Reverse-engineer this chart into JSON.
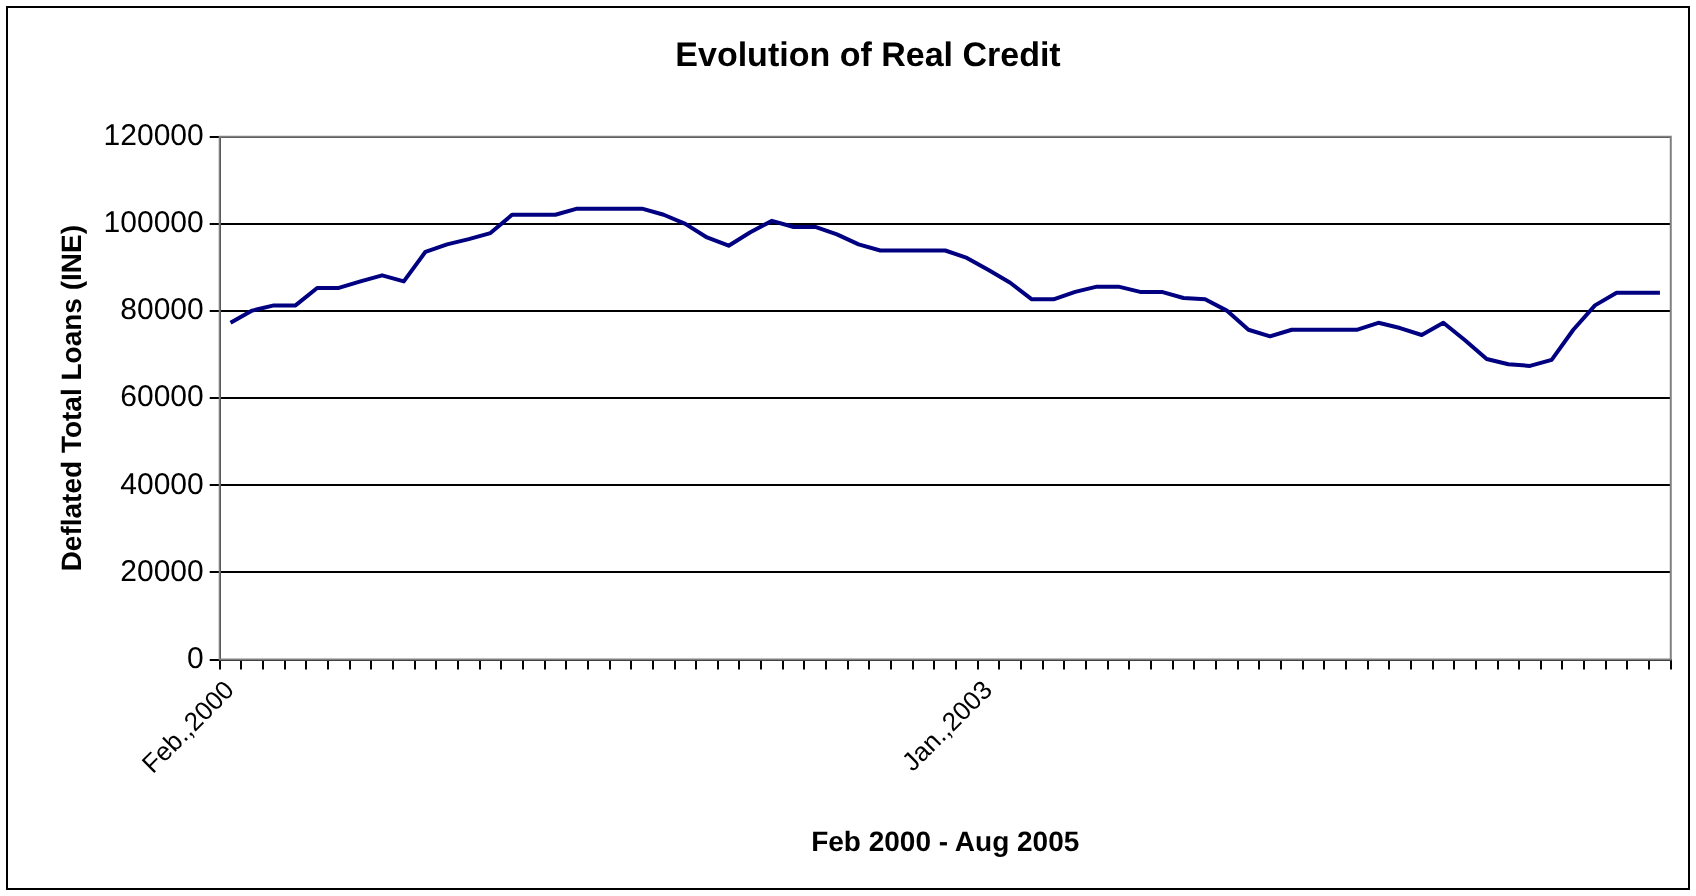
{
  "chart_data": {
    "type": "line",
    "title": "Evolution of Real Credit",
    "xlabel": "Feb 2000 - Aug 2005",
    "ylabel": "Deflated Total Loans (INE)",
    "categories": [
      "Feb.,2000",
      null,
      null,
      null,
      null,
      null,
      null,
      null,
      null,
      null,
      null,
      null,
      null,
      null,
      null,
      null,
      null,
      null,
      null,
      null,
      null,
      null,
      null,
      null,
      null,
      null,
      null,
      null,
      null,
      null,
      null,
      null,
      null,
      null,
      null,
      "Jan.,2003",
      null,
      null,
      null,
      null,
      null,
      null,
      null,
      null,
      null,
      null,
      null,
      null,
      null,
      null,
      null,
      null,
      null,
      null,
      null,
      null,
      null,
      null,
      null,
      null,
      null,
      null,
      null,
      null,
      null,
      null,
      null
    ],
    "series": [
      {
        "color": "#000080",
        "values": [
          77300,
          80100,
          81300,
          81300,
          85300,
          85300,
          86800,
          88200,
          86800,
          93600,
          95300,
          96500,
          97900,
          102100,
          102100,
          102100,
          103500,
          103500,
          103500,
          103500,
          102100,
          100000,
          96900,
          95000,
          98100,
          100700,
          99300,
          99300,
          97600,
          95300,
          93900,
          93900,
          93900,
          93900,
          92200,
          89400,
          86500,
          82700,
          82700,
          84400,
          85600,
          85600,
          84400,
          84400,
          83000,
          82700,
          80100,
          75700,
          74200,
          75700,
          75700,
          75700,
          75700,
          77300,
          76100,
          74500,
          77300,
          73300,
          69000,
          67800,
          67400,
          68800,
          75700,
          81300,
          84200,
          84200,
          84200
        ]
      }
    ],
    "ylim": [
      0,
      120000
    ],
    "yticks": [
      0,
      20000,
      40000,
      60000,
      80000,
      100000,
      120000
    ],
    "grid": "y",
    "legend": false,
    "marker": "none",
    "line_style": "solid"
  }
}
